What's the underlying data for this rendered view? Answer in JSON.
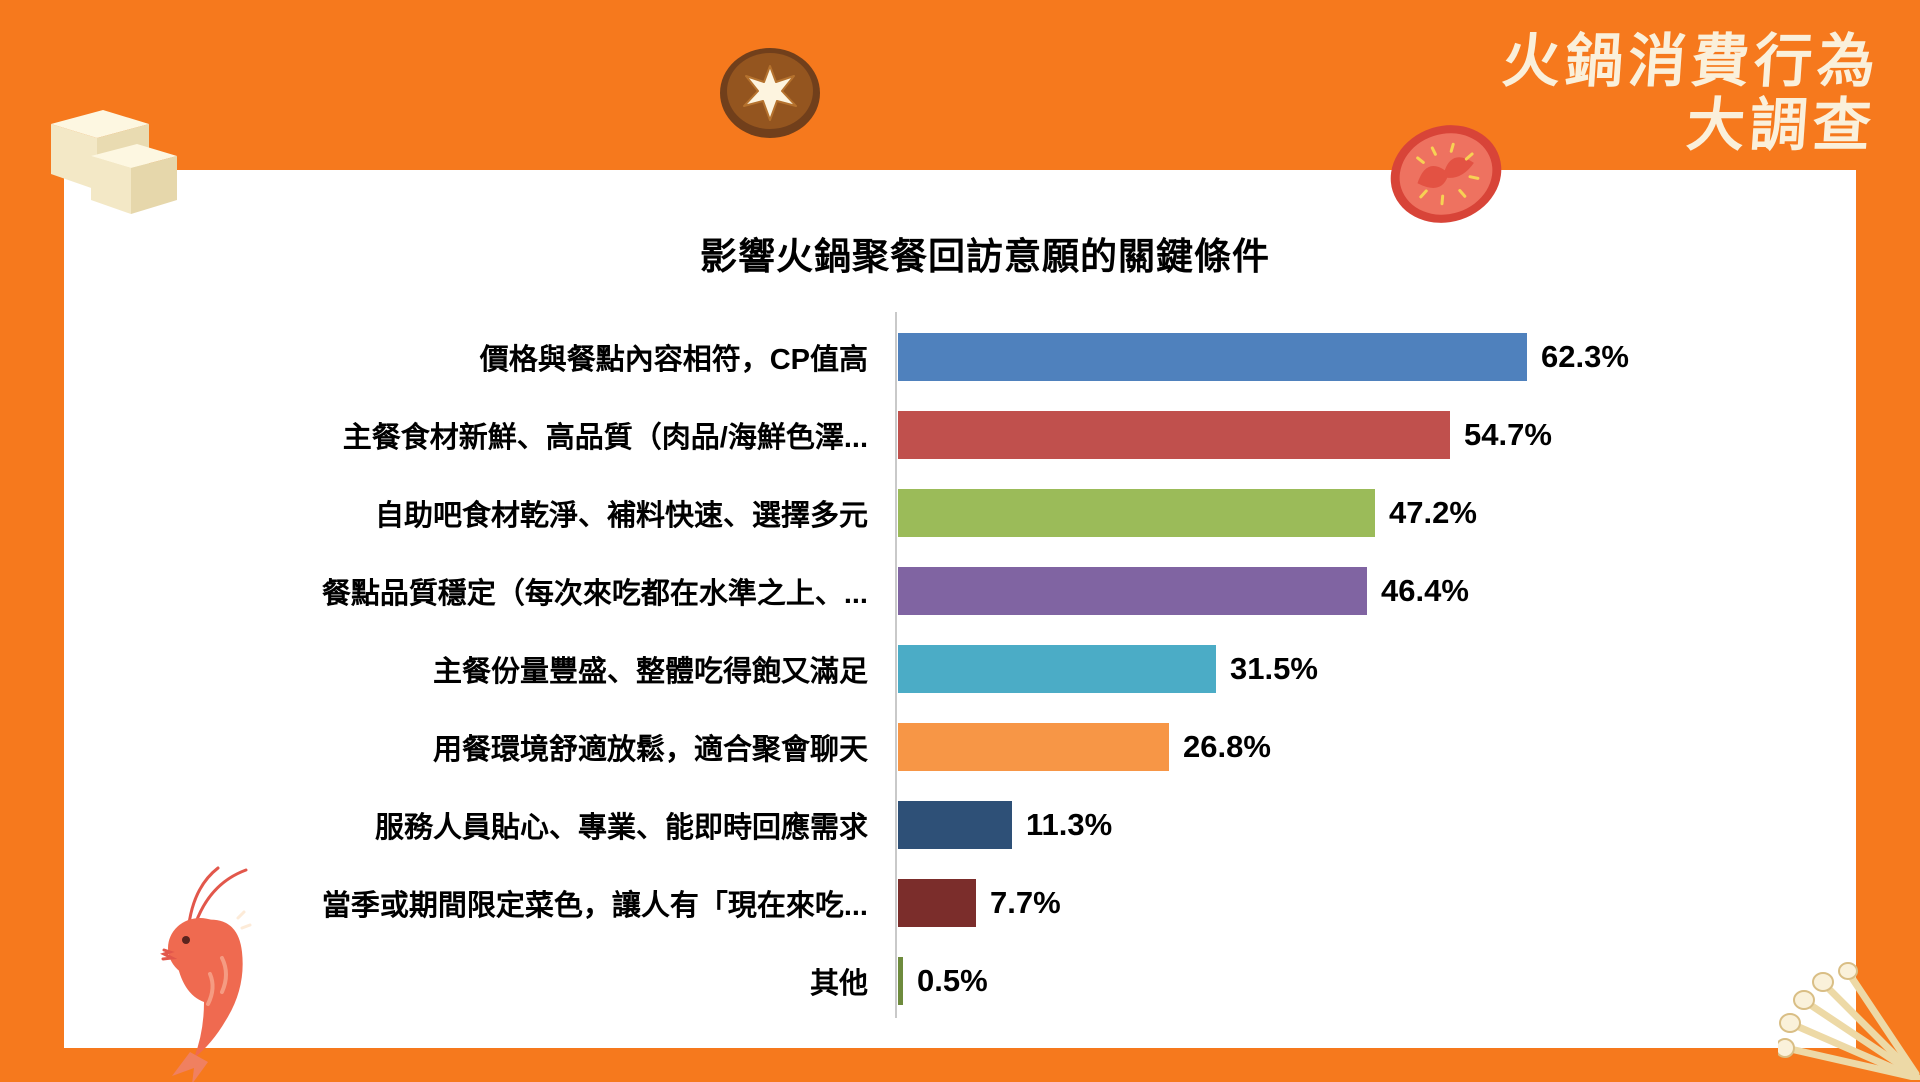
{
  "page": {
    "background_color": "#F6791D",
    "card_color": "#FFFFFF"
  },
  "header": {
    "title_line1": "火鍋消費行為",
    "title_line2": "大調查",
    "title_color": "#FAF0DB"
  },
  "chart_data": {
    "type": "bar",
    "orientation": "horizontal",
    "title": "影響火鍋聚餐回訪意願的關鍵條件",
    "xlabel": "",
    "ylabel": "",
    "xlim": [
      0,
      65
    ],
    "grid": false,
    "legend": "none",
    "categories": [
      "價格與餐點內容相符，CP值高",
      "主餐食材新鮮、高品質（肉品/海鮮色澤...",
      "自助吧食材乾淨、補料快速、選擇多元",
      "餐點品質穩定（每次來吃都在水準之上、...",
      "主餐份量豐盛、整體吃得飽又滿足",
      "用餐環境舒適放鬆，適合聚會聊天",
      "服務人員貼心、專業、能即時回應需求",
      "當季或期間限定菜色，讓人有「現在來吃...",
      "其他"
    ],
    "values": [
      62.3,
      54.7,
      47.2,
      46.4,
      31.5,
      26.8,
      11.3,
      7.7,
      0.5
    ],
    "value_labels": [
      "62.3%",
      "54.7%",
      "47.2%",
      "46.4%",
      "31.5%",
      "26.8%",
      "11.3%",
      "7.7%",
      "0.5%"
    ],
    "bar_colors": [
      "#4F81BD",
      "#C0504D",
      "#9BBB59",
      "#8064A2",
      "#4BACC6",
      "#F79646",
      "#2E5077",
      "#7B2D2B",
      "#6E8B3D"
    ]
  },
  "decorations": {
    "top_left": "tofu-cubes",
    "top_center": "shiitake-mushroom",
    "top_right": "tomato-slice",
    "bottom_left": "shrimp",
    "bottom_right": "enoki-mushrooms"
  }
}
